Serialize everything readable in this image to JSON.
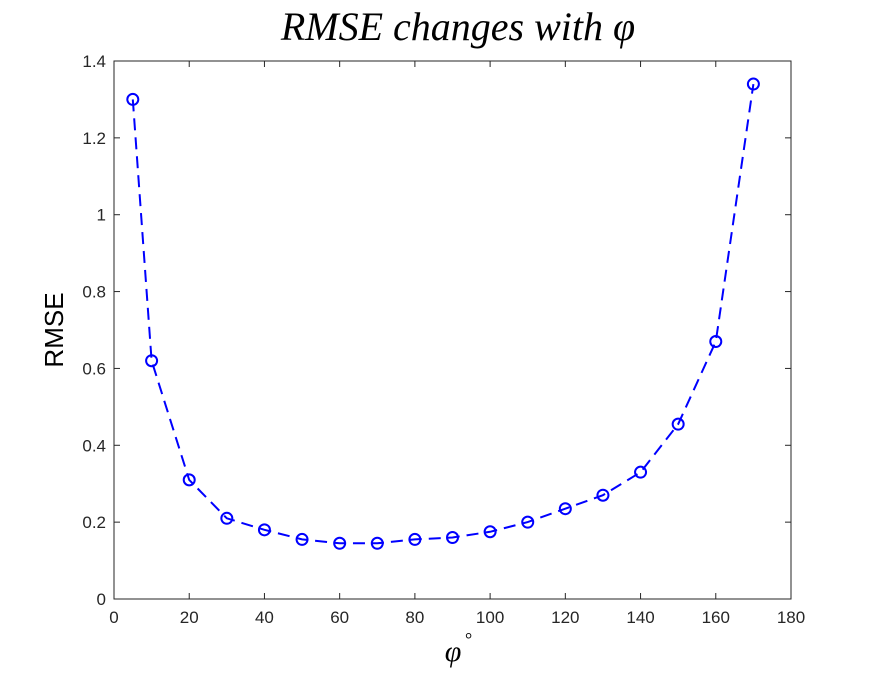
{
  "chart_data": {
    "type": "line",
    "title": "RMSE changes with φ",
    "xlabel": "φ",
    "xlabel_sup": "°",
    "ylabel": "RMSE",
    "xlim": [
      0,
      180
    ],
    "ylim": [
      0,
      1.4
    ],
    "xticks": [
      0,
      20,
      40,
      60,
      80,
      100,
      120,
      140,
      160,
      180
    ],
    "yticks": [
      0,
      0.2,
      0.4,
      0.6,
      0.8,
      1,
      1.2,
      1.4
    ],
    "xtick_labels": [
      "0",
      "20",
      "40",
      "60",
      "80",
      "100",
      "120",
      "140",
      "160",
      "180"
    ],
    "ytick_labels": [
      "0",
      "0.2",
      "0.4",
      "0.6",
      "0.8",
      "1",
      "1.2",
      "1.4"
    ],
    "grid": false,
    "series": [
      {
        "color": "#0000ff",
        "line_style": "dashed",
        "marker": "circle",
        "x": [
          5,
          10,
          20,
          30,
          40,
          50,
          60,
          70,
          80,
          90,
          100,
          110,
          120,
          130,
          140,
          150,
          160,
          170
        ],
        "y": [
          1.3,
          0.62,
          0.31,
          0.21,
          0.18,
          0.155,
          0.145,
          0.145,
          0.155,
          0.16,
          0.175,
          0.2,
          0.235,
          0.27,
          0.33,
          0.455,
          0.67,
          1.34
        ]
      }
    ]
  }
}
